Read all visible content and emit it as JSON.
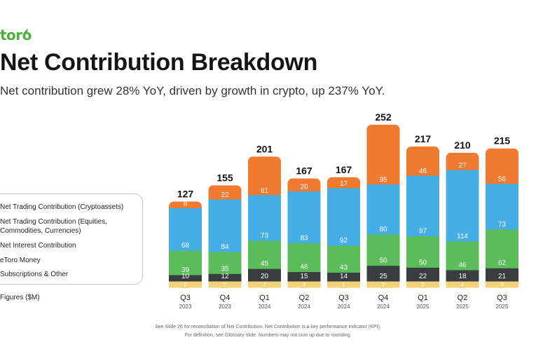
{
  "brand": {
    "logo_text": "toro",
    "accent": "#4caf3e"
  },
  "header": {
    "title": "Net Contribution Breakdown",
    "subtitle": "Net contribution grew 28% YoY, driven by growth in crypto, up 237% YoY."
  },
  "legend": {
    "items": [
      "Net Trading Contribution (Cryptoassets)",
      "Net Trading Contribution (Equities,",
      "Commodities, Currencies)",
      "Net Interest Contribution",
      "eToro Money",
      "Subscriptions & Other"
    ],
    "figures_label": "Figures ($M)"
  },
  "footnote": {
    "line1": "See Slide 26 for reconciliation of Net Contribution. Net Contribution is a key performance indicator (KPI).",
    "line2": "For definition, see Glossary slide. Numbers may not sum up due to rounding."
  },
  "chart_data": {
    "type": "bar",
    "stacked": true,
    "title": "Net Contribution Breakdown",
    "ylabel": "Figures ($M)",
    "categories": [
      "Q3 2023",
      "Q4 2023",
      "Q1 2024",
      "Q2 2024",
      "Q3 2024",
      "Q4 2024",
      "Q1 2025",
      "Q2 2025",
      "Q3 2025"
    ],
    "quarters": [
      "Q3",
      "Q4",
      "Q1",
      "Q2",
      "Q3",
      "Q4",
      "Q1",
      "Q2",
      "Q3"
    ],
    "years": [
      "2023",
      "2023",
      "2024",
      "2024",
      "2024",
      "2024",
      "2025",
      "2025",
      "2025"
    ],
    "totals": [
      127,
      155,
      201,
      167,
      167,
      252,
      217,
      210,
      215
    ],
    "series": [
      {
        "name": "Subscriptions & Other",
        "color": "#f5d27a",
        "text_color": "#ffffff",
        "values": [
          2,
          2,
          2,
          3,
          1,
          2,
          2,
          4,
          3
        ]
      },
      {
        "name": "eToro Money",
        "color": "#3a3d40",
        "text_color": "#ffffff",
        "values": [
          10,
          12,
          20,
          15,
          14,
          25,
          22,
          18,
          21
        ]
      },
      {
        "name": "Net Interest Contribution",
        "color": "#5bbd5a",
        "text_color": "#ffffff",
        "values": [
          39,
          35,
          45,
          46,
          43,
          50,
          50,
          46,
          62
        ]
      },
      {
        "name": "Net Trading Contribution (Equities, Commodities, Currencies)",
        "color": "#46aee6",
        "text_color": "#ffffff",
        "values": [
          68,
          84,
          73,
          83,
          92,
          80,
          97,
          114,
          73
        ]
      },
      {
        "name": "Net Trading Contribution (Cryptoassets)",
        "color": "#ef7a30",
        "text_color": "#ffffff",
        "values": [
          8,
          22,
          61,
          20,
          17,
          95,
          46,
          27,
          56
        ]
      }
    ]
  }
}
